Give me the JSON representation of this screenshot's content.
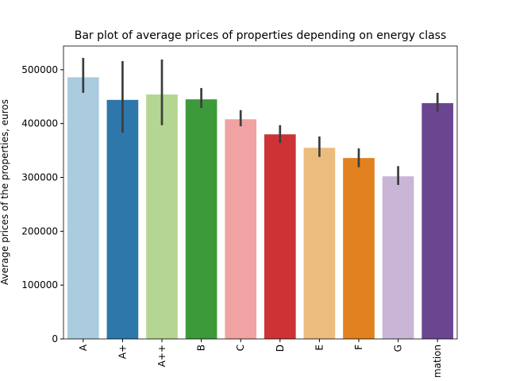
{
  "chart_data": {
    "type": "bar",
    "title": "Bar plot of average prices of properties depending on energy class",
    "y_label": "Average prices of the properties, euros",
    "categories": [
      "A",
      "A+",
      "A++",
      "B",
      "C",
      "D",
      "E",
      "F",
      "G",
      "mation"
    ],
    "values": [
      486000,
      444000,
      454000,
      445000,
      408000,
      380000,
      355000,
      336000,
      302000,
      438000
    ],
    "ci_low": [
      457000,
      383000,
      397000,
      429000,
      395000,
      364000,
      338000,
      319000,
      286000,
      422000
    ],
    "ci_high": [
      522000,
      516000,
      519000,
      466000,
      425000,
      397000,
      376000,
      354000,
      321000,
      457000
    ],
    "colors": [
      "#abcbde",
      "#2e77aa",
      "#b5d692",
      "#3d9a3a",
      "#f0a3a2",
      "#cd3235",
      "#ecbc7f",
      "#e2811f",
      "#c9b5d5",
      "#6a4691"
    ],
    "ylim": [
      0,
      544000
    ],
    "yticks": [
      0,
      100000,
      200000,
      300000,
      400000,
      500000
    ]
  }
}
